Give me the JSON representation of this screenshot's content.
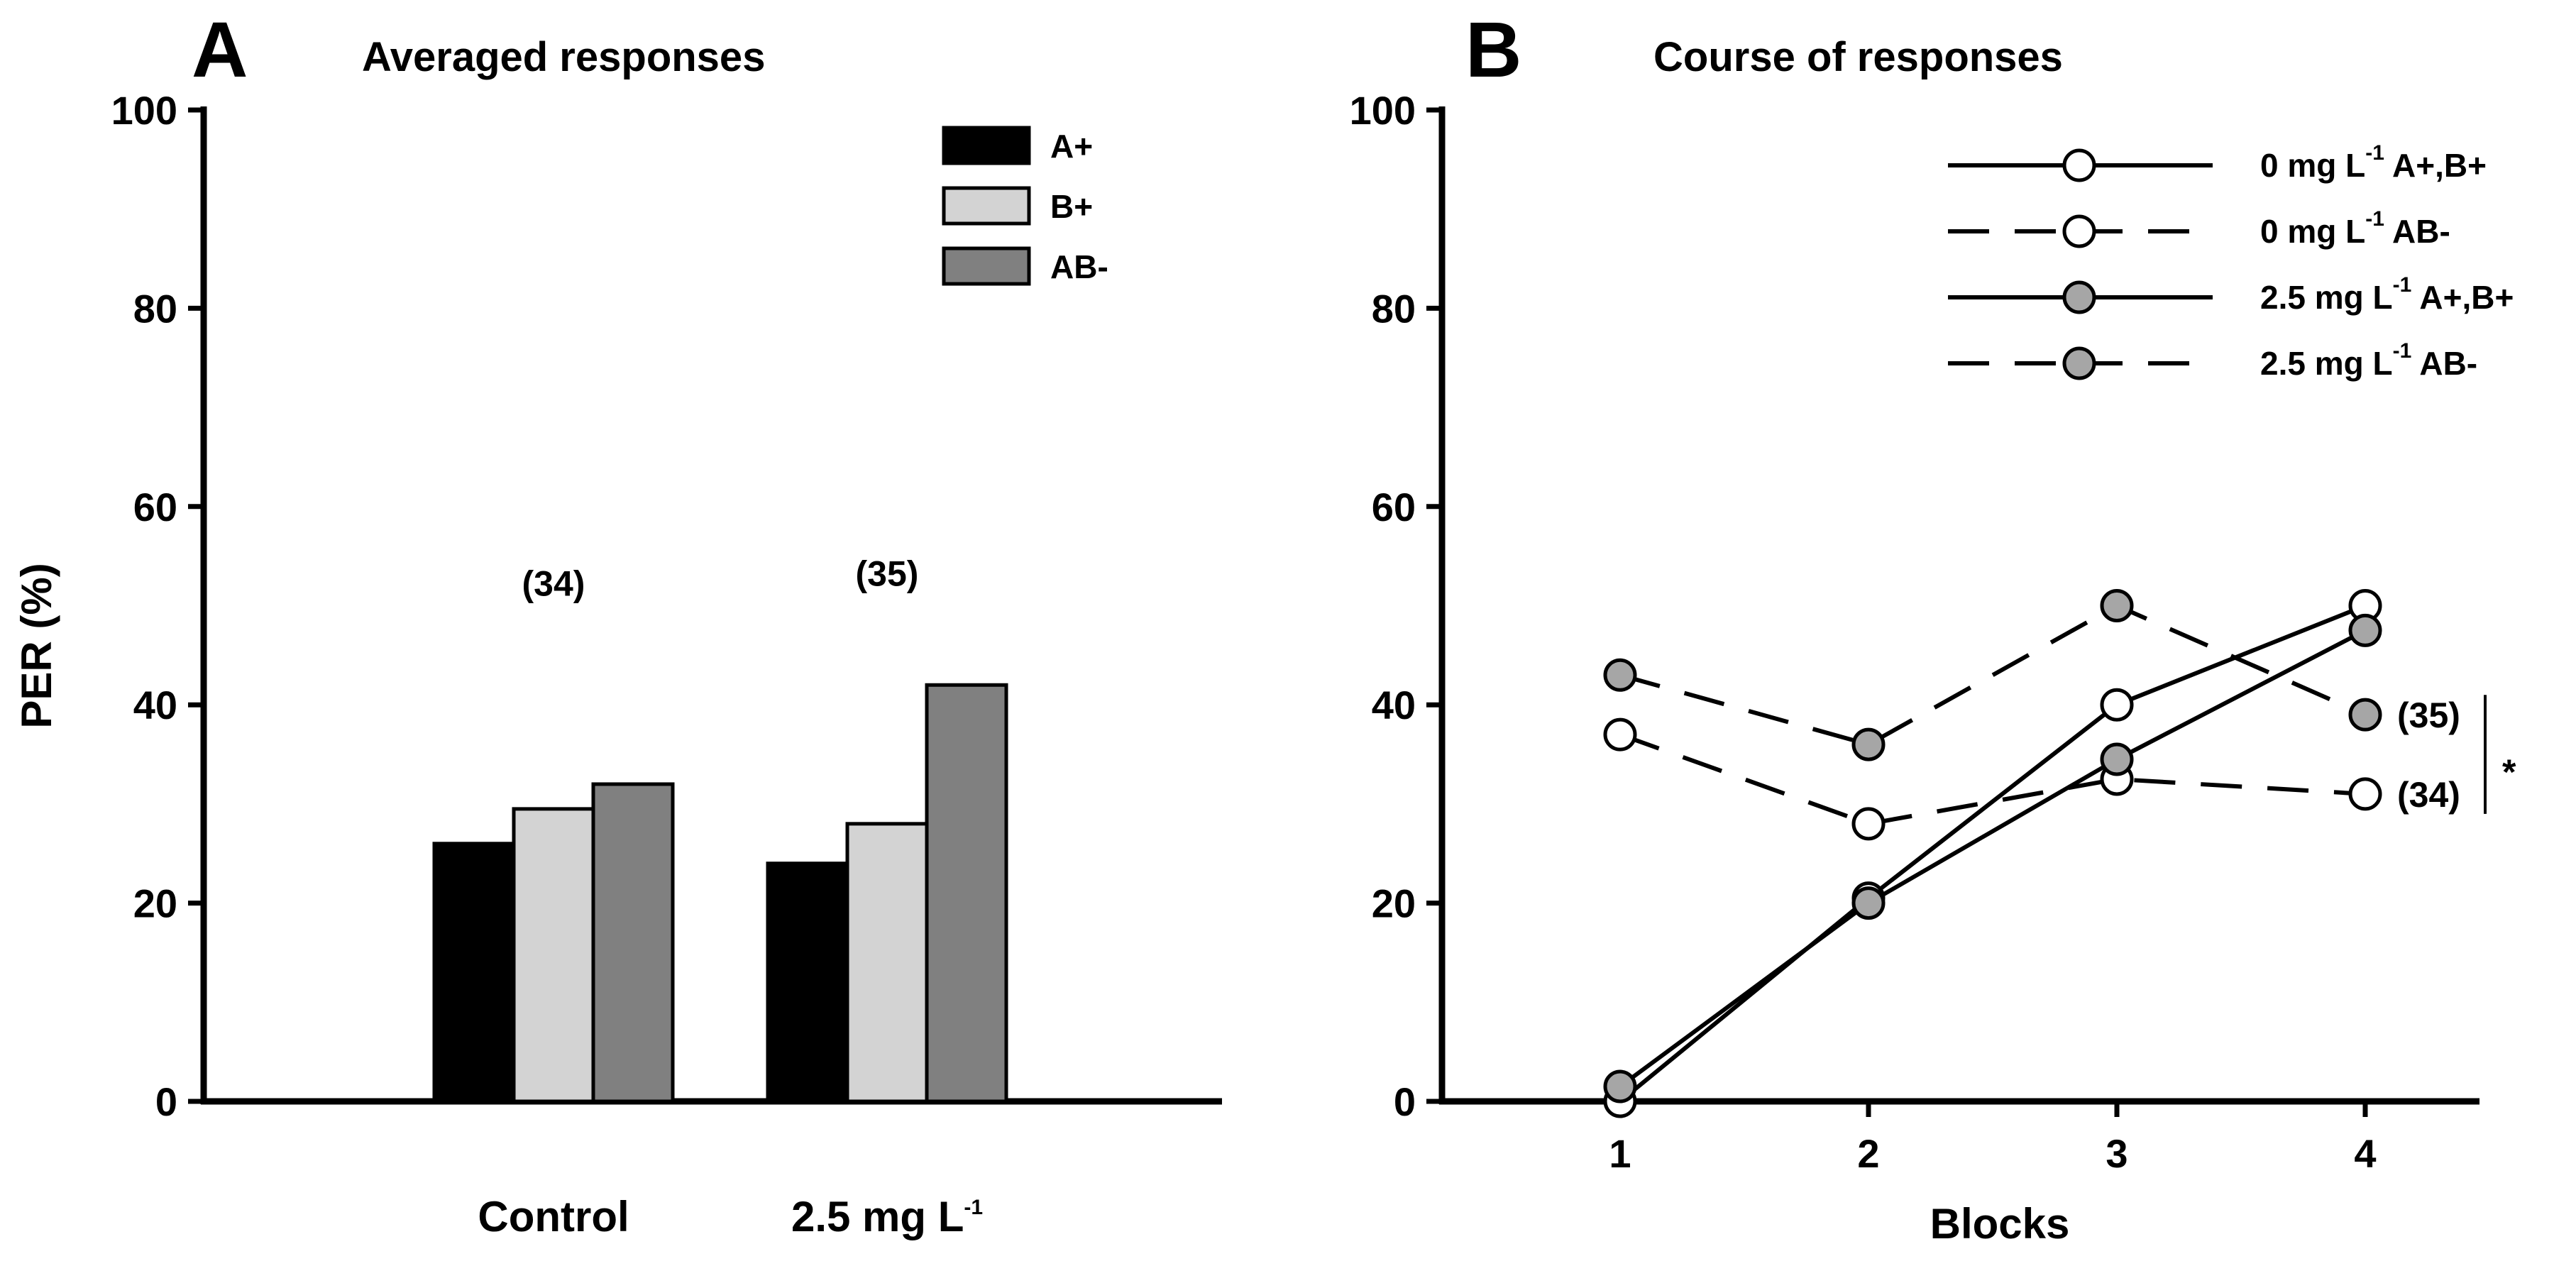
{
  "colors": {
    "a_plus": "#000000",
    "b_plus": "#d3d3d3",
    "ab_minus": "#808080",
    "treated_marker": "#a6a6a6",
    "control_marker": "#ffffff"
  },
  "chart_data": [
    {
      "type": "bar",
      "panel": "A",
      "title": "Averaged responses",
      "ylabel": "PER (%)",
      "ylim": [
        0,
        100
      ],
      "yticks": [
        "0",
        "20",
        "40",
        "60",
        "80",
        "100"
      ],
      "categories": [
        {
          "label": "Control",
          "sup": "",
          "n_label": "(34)"
        },
        {
          "label": "2.5 mg L",
          "sup": "-1",
          "n_label": "(35)"
        }
      ],
      "series": [
        {
          "name": "A+",
          "values": [
            26,
            24
          ]
        },
        {
          "name": "B+",
          "values": [
            29.5,
            28
          ]
        },
        {
          "name": "AB-",
          "values": [
            32,
            42
          ]
        }
      ]
    },
    {
      "type": "line",
      "panel": "B",
      "title": "Course of responses",
      "xlabel": "Blocks",
      "ylim": [
        0,
        100
      ],
      "x": [
        1,
        2,
        3,
        4
      ],
      "xticks": [
        "1",
        "2",
        "3",
        "4"
      ],
      "yticks": [
        "0",
        "20",
        "40",
        "60",
        "80",
        "100"
      ],
      "series": [
        {
          "name_pre": "0 mg L",
          "sup": "-1",
          "name_post": " A+,B+",
          "style": "solid",
          "marker": "open",
          "values": [
            0,
            20.5,
            40,
            50
          ]
        },
        {
          "name_pre": "0 mg L",
          "sup": "-1",
          "name_post": " AB-",
          "style": "dashed",
          "marker": "open",
          "values": [
            37,
            28,
            32.5,
            31
          ],
          "end_label": "(34)"
        },
        {
          "name_pre": "2.5 mg L",
          "sup": "-1",
          "name_post": " A+,B+",
          "style": "solid",
          "marker": "filled",
          "values": [
            1.5,
            20,
            34.5,
            47.5
          ]
        },
        {
          "name_pre": "2.5 mg L",
          "sup": "-1",
          "name_post": " AB-",
          "style": "dashed",
          "marker": "filled",
          "values": [
            43,
            36,
            50,
            39
          ],
          "end_label": "(35)"
        }
      ],
      "significance": "*"
    }
  ]
}
